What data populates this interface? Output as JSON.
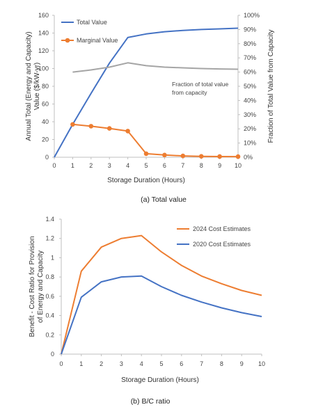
{
  "chart_data": [
    {
      "type": "line",
      "caption": "(a) Total value",
      "xlabel": "Storage Duration (Hours)",
      "ylabel": "Annual Total (Energy and Capacity) Value ($/kW-yr)",
      "y2label": "Fraction of Total Value from Capacity",
      "annotation": [
        "Fraction of total value",
        "from capacity"
      ],
      "xlim": [
        0,
        10
      ],
      "ylim": [
        0,
        160
      ],
      "y2lim": [
        0,
        100
      ],
      "xticks": [
        "0",
        "1",
        "2",
        "3",
        "4",
        "5",
        "6",
        "7",
        "8",
        "9",
        "10"
      ],
      "yticks": [
        "0",
        "20",
        "40",
        "60",
        "80",
        "100",
        "120",
        "140",
        "160"
      ],
      "y2ticks": [
        "0%",
        "10%",
        "20%",
        "30%",
        "40%",
        "50%",
        "60%",
        "70%",
        "80%",
        "90%",
        "100%"
      ],
      "legend_position": "top-left",
      "series": [
        {
          "name": "Total Value",
          "color": "#4472c4",
          "axis": "left",
          "markers": false,
          "x": [
            0,
            1,
            2,
            3,
            4,
            5,
            6,
            7,
            8,
            9,
            10
          ],
          "values": [
            0,
            37,
            72,
            106,
            135,
            139,
            141.5,
            143,
            144,
            144.7,
            145.5
          ]
        },
        {
          "name": "Marginal Value",
          "color": "#ed7d31",
          "axis": "left",
          "markers": true,
          "x": [
            1,
            2,
            3,
            4,
            5,
            6,
            7,
            8,
            9,
            10
          ],
          "values": [
            37,
            35,
            32.5,
            29.5,
            4,
            2.5,
            1.5,
            1,
            0.8,
            0.7
          ]
        },
        {
          "name": "",
          "color": "#a5a5a5",
          "axis": "right",
          "markers": false,
          "x": [
            1,
            2,
            3,
            4,
            5,
            6,
            7,
            8,
            9,
            10
          ],
          "values": [
            60,
            61.5,
            63.5,
            66.5,
            64.5,
            63.5,
            63,
            62.5,
            62.2,
            62
          ]
        }
      ]
    },
    {
      "type": "line",
      "caption": "(b) B/C ratio",
      "xlabel": "Storage Duration (Hours)",
      "ylabel": "Benefit - Cost Ratio for Provision of Energy and Capacity",
      "xlim": [
        0,
        10
      ],
      "ylim": [
        0,
        1.4
      ],
      "xticks": [
        "0",
        "1",
        "2",
        "3",
        "4",
        "5",
        "6",
        "7",
        "8",
        "9",
        "10"
      ],
      "yticks": [
        "0",
        "0.2",
        "0.4",
        "0.6",
        "0.8",
        "1",
        "1.2",
        "1.4"
      ],
      "legend_position": "top-right",
      "series": [
        {
          "name": "2024 Cost Estimates",
          "color": "#ed7d31",
          "x": [
            0,
            1,
            2,
            3,
            4,
            5,
            6,
            7,
            8,
            9,
            10
          ],
          "values": [
            0,
            0.86,
            1.11,
            1.2,
            1.23,
            1.06,
            0.92,
            0.81,
            0.73,
            0.66,
            0.61
          ]
        },
        {
          "name": "2020 Cost Estimates",
          "color": "#4472c4",
          "x": [
            0,
            1,
            2,
            3,
            4,
            5,
            6,
            7,
            8,
            9,
            10
          ],
          "values": [
            0,
            0.59,
            0.75,
            0.8,
            0.81,
            0.7,
            0.61,
            0.54,
            0.48,
            0.43,
            0.39
          ]
        }
      ]
    }
  ]
}
